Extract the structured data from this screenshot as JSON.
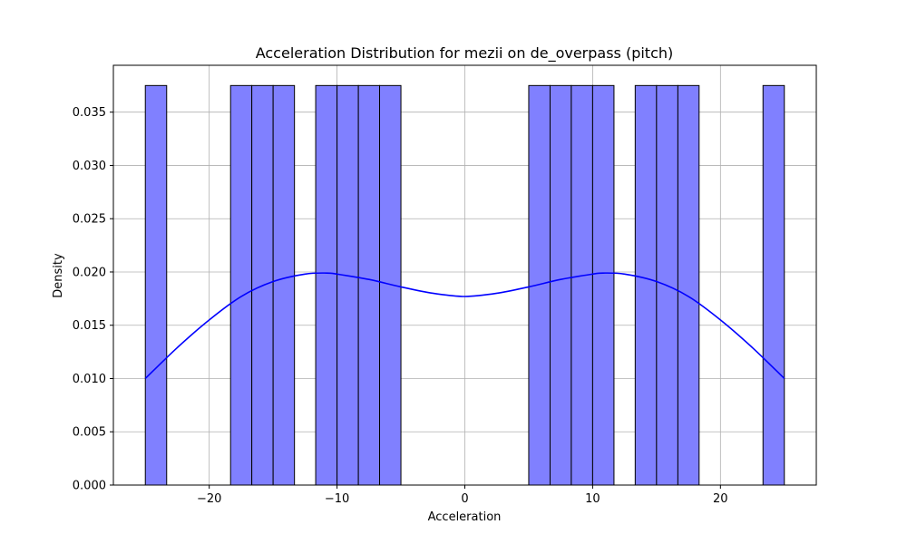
{
  "chart_data": {
    "type": "bar",
    "title": "Acceleration Distribution for mezii on de_overpass (pitch)",
    "xlabel": "Acceleration",
    "ylabel": "Density",
    "xlim": [
      -27.5,
      27.5
    ],
    "ylim": [
      0,
      0.0394
    ],
    "xticks": [
      -20,
      -10,
      0,
      10,
      20
    ],
    "xtick_labels": [
      "−20",
      "−10",
      "0",
      "10",
      "20"
    ],
    "yticks": [
      0,
      0.005,
      0.01,
      0.015,
      0.02,
      0.025,
      0.03,
      0.035
    ],
    "ytick_labels": [
      "0.000",
      "0.005",
      "0.010",
      "0.015",
      "0.020",
      "0.025",
      "0.030",
      "0.035"
    ],
    "grid": true,
    "bar_color": "#8080ff",
    "edge_color": "#000000",
    "kde_color": "#0000ff",
    "bins": [
      {
        "x0": -25.0,
        "x1": -23.33,
        "density": 0.0375
      },
      {
        "x0": -18.33,
        "x1": -16.67,
        "density": 0.0375
      },
      {
        "x0": -16.67,
        "x1": -15.0,
        "density": 0.0375
      },
      {
        "x0": -15.0,
        "x1": -13.33,
        "density": 0.0375
      },
      {
        "x0": -11.67,
        "x1": -10.0,
        "density": 0.0375
      },
      {
        "x0": -10.0,
        "x1": -8.33,
        "density": 0.0375
      },
      {
        "x0": -8.33,
        "x1": -6.67,
        "density": 0.0375
      },
      {
        "x0": -6.67,
        "x1": -5.0,
        "density": 0.0375
      },
      {
        "x0": 5.0,
        "x1": 6.67,
        "density": 0.0375
      },
      {
        "x0": 6.67,
        "x1": 8.33,
        "density": 0.0375
      },
      {
        "x0": 8.33,
        "x1": 10.0,
        "density": 0.0375
      },
      {
        "x0": 10.0,
        "x1": 11.67,
        "density": 0.0375
      },
      {
        "x0": 13.33,
        "x1": 15.0,
        "density": 0.0375
      },
      {
        "x0": 15.0,
        "x1": 16.67,
        "density": 0.0375
      },
      {
        "x0": 16.67,
        "x1": 18.33,
        "density": 0.0375
      },
      {
        "x0": 23.33,
        "x1": 25.0,
        "density": 0.0375
      }
    ],
    "kde": {
      "x": [
        -25,
        -22.5,
        -20,
        -17.5,
        -15,
        -12.5,
        -10.8,
        -10,
        -7.5,
        -5,
        -2.5,
        0,
        2.5,
        5,
        7.5,
        10,
        10.8,
        12.5,
        15,
        17.5,
        20,
        22.5,
        25
      ],
      "y": [
        0.01,
        0.0129,
        0.0155,
        0.0177,
        0.0191,
        0.0198,
        0.0199,
        0.0198,
        0.0193,
        0.0186,
        0.018,
        0.0177,
        0.018,
        0.0186,
        0.0193,
        0.0198,
        0.0199,
        0.0198,
        0.0191,
        0.0177,
        0.0155,
        0.0129,
        0.01
      ]
    }
  }
}
